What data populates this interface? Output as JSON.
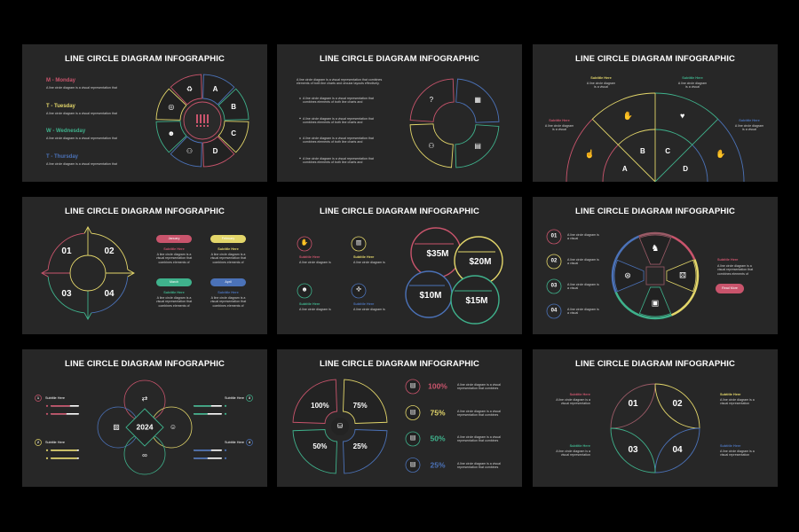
{
  "colors": {
    "pink": "#c9546c",
    "yellow": "#e3d66a",
    "green": "#3fb28c",
    "blue": "#4b72b8",
    "muted": "#9a5a66",
    "background": "#000000",
    "slide": "#272727"
  },
  "slides": [
    {
      "title": "LINE CIRCLE DIAGRAM INFOGRAPHIC",
      "items": [
        {
          "label": "M - Monday",
          "desc": "A line circle diagram is a visual representation that",
          "color": "pink"
        },
        {
          "label": "T - Tuesday",
          "desc": "A line circle diagram is a visual representation that",
          "color": "yellow"
        },
        {
          "label": "W - Wednesday",
          "desc": "A line circle diagram is a visual representation that",
          "color": "green"
        },
        {
          "label": "T - Thursday",
          "desc": "A line circle diagram is a visual representation that",
          "color": "blue"
        }
      ],
      "segments": [
        "A",
        "B",
        "C",
        "D"
      ],
      "icons": [
        "recycle-icon",
        "group-icon",
        "person-icon",
        "globe-icon",
        "bars-icon"
      ]
    },
    {
      "title": "LINE CIRCLE DIAGRAM INFOGRAPHIC",
      "intro": "A line circle diagram is a visual representation that combines elements of both line charts and circular layouts effectively.",
      "bullets": [
        "A line circle diagram is a visual representation that combines elements of both line charts and",
        "A line circle diagram is a visual representation that combines elements of both line charts and",
        "A line circle diagram is a visual representation that combines elements of both line charts and",
        "A line circle diagram is a visual representation that combines elements of both line charts and"
      ],
      "icons": [
        "question-chat-icon",
        "calendar-icon",
        "document-icon",
        "hierarchy-icon"
      ]
    },
    {
      "title": "LINE CIRCLE DIAGRAM INFOGRAPHIC",
      "subtitles": [
        {
          "title": "Subtitle Here",
          "desc": "A line circle diagram is a visual",
          "color": "pink"
        },
        {
          "title": "Subtitle Here",
          "desc": "A line circle diagram is a visual",
          "color": "yellow"
        },
        {
          "title": "Subtitle Here",
          "desc": "A line circle diagram is a visual",
          "color": "green"
        },
        {
          "title": "Subtitle Here",
          "desc": "A line circle diagram is a visual",
          "color": "blue"
        }
      ],
      "labels": [
        "A",
        "B",
        "C",
        "D"
      ],
      "icons": [
        "care-hand-icon",
        "handshake-icon",
        "heart-hand-icon",
        "clap-icon"
      ]
    },
    {
      "title": "LINE CIRCLE DIAGRAM INFOGRAPHIC",
      "numbers": [
        "01",
        "02",
        "03",
        "04"
      ],
      "cards": [
        {
          "pill": "January",
          "subtitle": "Subtitle Here",
          "desc": "A line circle diagram is a visual representation that combines elements of",
          "color": "pink"
        },
        {
          "pill": "February",
          "subtitle": "Subtitle Here",
          "desc": "A line circle diagram is a visual representation that combines elements of",
          "color": "yellow"
        },
        {
          "pill": "March",
          "subtitle": "Subtitle Here",
          "desc": "A line circle diagram is a visual representation that combines elements of",
          "color": "green"
        },
        {
          "pill": "April",
          "subtitle": "Subtitle Here",
          "desc": "A line circle diagram is a visual representation that combines elements of",
          "color": "blue"
        }
      ]
    },
    {
      "title": "LINE CIRCLE DIAGRAM INFOGRAPHIC",
      "items": [
        {
          "subtitle": "Subtitle Here",
          "desc": "A line circle diagram is",
          "color": "pink"
        },
        {
          "subtitle": "Subtitle Here",
          "desc": "A line circle diagram is",
          "color": "yellow"
        },
        {
          "subtitle": "Subtitle Here",
          "desc": "A line circle diagram is",
          "color": "green"
        },
        {
          "subtitle": "Subtitle Here",
          "desc": "A line circle diagram is",
          "color": "blue"
        }
      ],
      "values": [
        "$35M",
        "$20M",
        "$10M",
        "$15M"
      ]
    },
    {
      "title": "LINE CIRCLE DIAGRAM INFOGRAPHIC",
      "items": [
        {
          "num": "01",
          "desc": "A line circle diagram is a visual",
          "color": "pink"
        },
        {
          "num": "02",
          "desc": "A line circle diagram is a visual",
          "color": "yellow"
        },
        {
          "num": "03",
          "desc": "A line circle diagram is a visual",
          "color": "green"
        },
        {
          "num": "04",
          "desc": "A line circle diagram is a visual",
          "color": "blue"
        }
      ],
      "side": {
        "subtitle": "Subtitle Here",
        "desc": "A line circle diagram is a visual representation that combines elements of",
        "button": "Read More"
      },
      "icons": [
        "chess-knight-icon",
        "dice-icon",
        "cards-icon",
        "gamepad-icon"
      ]
    },
    {
      "title": "LINE CIRCLE DIAGRAM INFOGRAPHIC",
      "center": "2024",
      "items": [
        {
          "num": "1",
          "subtitle": "Subtitle Here",
          "color": "pink"
        },
        {
          "num": "2",
          "subtitle": "Subtitle Here",
          "color": "yellow"
        },
        {
          "num": "3",
          "subtitle": "Subtitle Here",
          "color": "green"
        },
        {
          "num": "4",
          "subtitle": "Subtitle Here",
          "color": "blue"
        }
      ],
      "icons": [
        "exchange-icon",
        "image-icon",
        "id-card-icon",
        "link-icon"
      ]
    },
    {
      "title": "LINE CIRCLE DIAGRAM INFOGRAPHIC",
      "values": [
        "100%",
        "75%",
        "50%",
        "25%"
      ],
      "list": [
        {
          "value": "100%",
          "desc": "A line circle diagram is a visual representation that combines",
          "color": "pink"
        },
        {
          "value": "75%",
          "desc": "A line circle diagram is a visual representation that combines",
          "color": "yellow"
        },
        {
          "value": "50%",
          "desc": "A line circle diagram is a visual representation that combines",
          "color": "green"
        },
        {
          "value": "25%",
          "desc": "A line circle diagram is a visual representation that combines",
          "color": "blue"
        }
      ]
    },
    {
      "title": "LINE CIRCLE DIAGRAM INFOGRAPHIC",
      "numbers": [
        "01",
        "02",
        "03",
        "04"
      ],
      "sides": [
        {
          "subtitle": "Subtitle Here",
          "desc": "A line circle diagram is a visual representation",
          "color": "pink"
        },
        {
          "subtitle": "Subtitle Here",
          "desc": "A line circle diagram is a visual representation",
          "color": "yellow"
        },
        {
          "subtitle": "Subtitle Here",
          "desc": "A line circle diagram is a visual representation",
          "color": "green"
        },
        {
          "subtitle": "Subtitle Here",
          "desc": "A line circle diagram is a visual representation",
          "color": "blue"
        }
      ]
    }
  ]
}
